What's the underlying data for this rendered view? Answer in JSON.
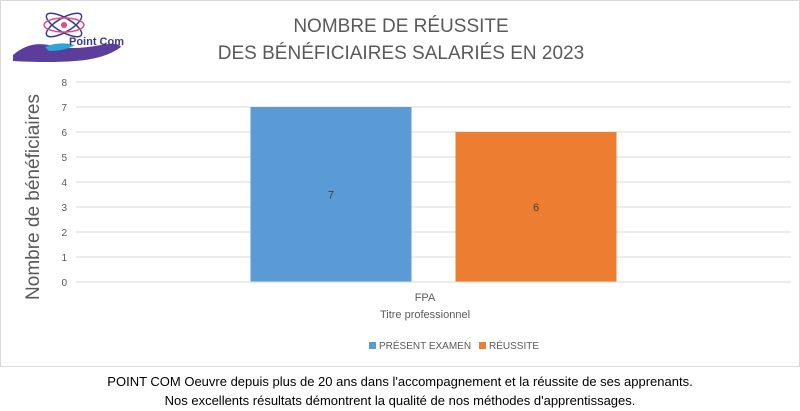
{
  "brand": {
    "logo_text": "Point Com"
  },
  "chart_data": {
    "type": "bar",
    "title_line1": "NOMBRE DE RÉUSSITE",
    "title_line2": "DES BÉNÉFICIAIRES SALARIÉS EN 2023",
    "ylabel": "Nombre de bénéficiaires",
    "category": "FPA",
    "xlabel": "Titre professionnel",
    "ylim": [
      0,
      8
    ],
    "yticks": [
      0,
      1,
      2,
      3,
      4,
      5,
      6,
      7,
      8
    ],
    "grid": true,
    "legend_position": "bottom",
    "series": [
      {
        "name": "PRÉSENT EXAMEN",
        "value": 7,
        "label": "7",
        "color": "#5B9BD5"
      },
      {
        "name": "RÉUSSITE",
        "value": 6,
        "label": "6",
        "color": "#ED7D31"
      }
    ]
  },
  "caption": {
    "line1": "POINT COM Oeuvre depuis plus de 20 ans dans l'accompagnement et la réussite de ses apprenants.",
    "line2": "Nos excellents résultats démontrent la qualité de nos méthodes d'apprentissages."
  }
}
